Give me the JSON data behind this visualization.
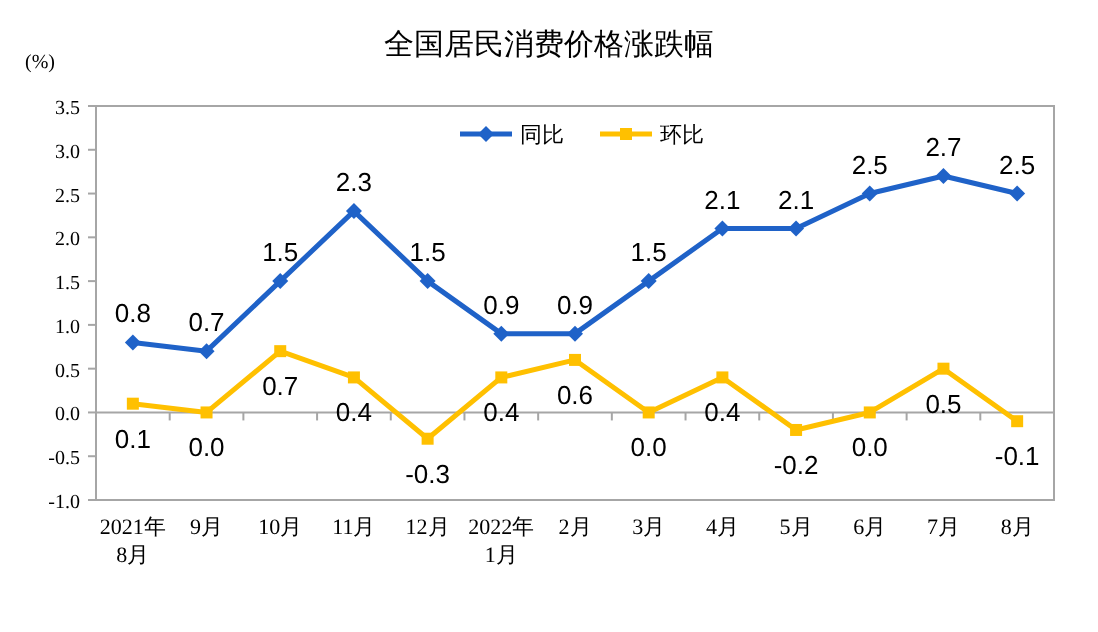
{
  "chart_data": {
    "type": "line",
    "title": "全国居民消费价格涨跌幅",
    "ylabel": "(%)",
    "categories": [
      "2021年\n8月",
      "9月",
      "10月",
      "11月",
      "12月",
      "2022年\n1月",
      "2月",
      "3月",
      "4月",
      "5月",
      "6月",
      "7月",
      "8月"
    ],
    "series": [
      {
        "name": "同比",
        "color": "#1f62c8",
        "marker": "diamond",
        "values": [
          0.8,
          0.7,
          1.5,
          2.3,
          1.5,
          0.9,
          0.9,
          1.5,
          2.1,
          2.1,
          2.5,
          2.7,
          2.5
        ],
        "value_labels": [
          "0.8",
          "0.7",
          "1.5",
          "2.3",
          "1.5",
          "0.9",
          "0.9",
          "1.5",
          "2.1",
          "2.1",
          "2.5",
          "2.7",
          "2.5"
        ]
      },
      {
        "name": "环比",
        "color": "#ffc000",
        "marker": "square",
        "values": [
          0.1,
          0.0,
          0.7,
          0.4,
          -0.3,
          0.4,
          0.6,
          0.0,
          0.4,
          -0.2,
          0.0,
          0.5,
          -0.1
        ],
        "value_labels": [
          "0.1",
          "0.0",
          "0.7",
          "0.4",
          "-0.3",
          "0.4",
          "0.6",
          "0.0",
          "0.4",
          "-0.2",
          "0.0",
          "0.5",
          "-0.1"
        ]
      }
    ],
    "ylim": [
      -1.0,
      3.5
    ],
    "yticks": [
      {
        "value": -1,
        "label": "-1.0"
      },
      {
        "value": -0.5,
        "label": "-0.5"
      },
      {
        "value": 0,
        "label": "0.0"
      },
      {
        "value": 0.5,
        "label": "0.5"
      },
      {
        "value": 1,
        "label": "1.0"
      },
      {
        "value": 1.5,
        "label": "1.5"
      },
      {
        "value": 2,
        "label": "2.0"
      },
      {
        "value": 2.5,
        "label": "2.5"
      },
      {
        "value": 3,
        "label": "3.0"
      },
      {
        "value": 3.5,
        "label": "3.5"
      }
    ],
    "legend": "top"
  }
}
